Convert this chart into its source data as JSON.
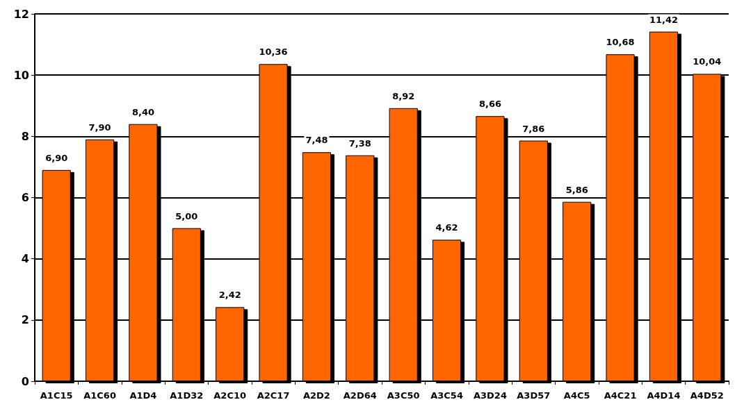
{
  "chart_data": {
    "type": "bar",
    "categories": [
      "A1C15",
      "A1C60",
      "A1D4",
      "A1D32",
      "A2C10",
      "A2C17",
      "A2D2",
      "A2D64",
      "A3C50",
      "A3C54",
      "A3D24",
      "A3D57",
      "A4C5",
      "A4C21",
      "A4D14",
      "A4D52"
    ],
    "values": [
      6.9,
      7.9,
      8.4,
      5.0,
      2.42,
      10.36,
      7.48,
      7.38,
      8.92,
      4.62,
      8.66,
      7.86,
      5.86,
      10.68,
      11.42,
      10.04
    ],
    "value_labels": [
      "6,90",
      "7,90",
      "8,40",
      "5,00",
      "2,42",
      "10,36",
      "7,48",
      "7,38",
      "8,92",
      "4,62",
      "8,66",
      "7,86",
      "5,86",
      "10,68",
      "11,42",
      "10,04"
    ],
    "color": "#ff6600",
    "ylim": [
      0,
      12
    ],
    "yticks": [
      0,
      2,
      4,
      6,
      8,
      10,
      12
    ],
    "grid": "y"
  }
}
